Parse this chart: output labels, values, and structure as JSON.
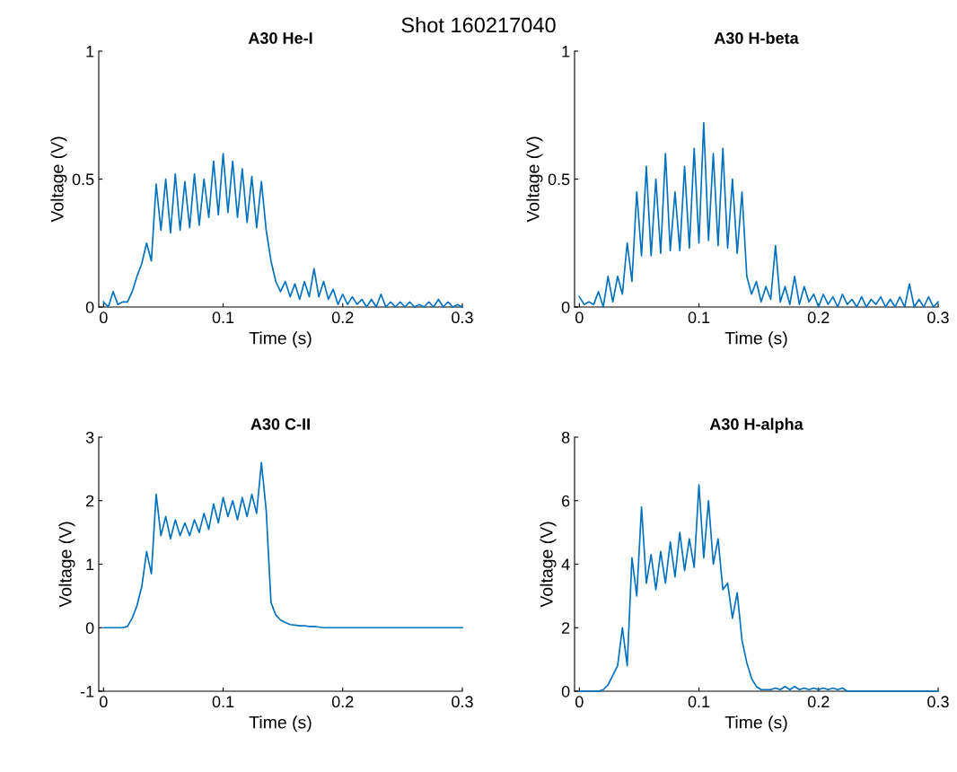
{
  "chart_data": [
    {
      "type": "line",
      "title": "A30 He-I",
      "annotations": [
        "Shot 160217040"
      ],
      "xlabel": "Time (s)",
      "ylabel": "Voltage (V)",
      "xlim": [
        -0.004,
        0.3
      ],
      "xticks": [
        0,
        0.1,
        0.2,
        0.3
      ],
      "ylim": [
        0,
        1
      ],
      "yticks": [
        0,
        0.5,
        1
      ],
      "grid": false,
      "x": [
        0,
        0.004,
        0.008,
        0.012,
        0.016,
        0.02,
        0.024,
        0.028,
        0.032,
        0.036,
        0.04,
        0.044,
        0.048,
        0.052,
        0.056,
        0.06,
        0.064,
        0.068,
        0.072,
        0.076,
        0.08,
        0.084,
        0.088,
        0.092,
        0.096,
        0.1,
        0.104,
        0.108,
        0.112,
        0.116,
        0.12,
        0.124,
        0.128,
        0.132,
        0.136,
        0.14,
        0.144,
        0.148,
        0.152,
        0.156,
        0.16,
        0.164,
        0.168,
        0.172,
        0.176,
        0.18,
        0.184,
        0.188,
        0.192,
        0.196,
        0.2,
        0.204,
        0.208,
        0.212,
        0.216,
        0.22,
        0.224,
        0.228,
        0.232,
        0.236,
        0.24,
        0.244,
        0.248,
        0.252,
        0.256,
        0.26,
        0.264,
        0.268,
        0.272,
        0.276,
        0.28,
        0.284,
        0.288,
        0.292,
        0.296,
        0.3
      ],
      "series": [
        {
          "color": "#0072bd",
          "values": [
            0.02,
            0.0,
            0.06,
            0.01,
            0.02,
            0.02,
            0.06,
            0.12,
            0.17,
            0.25,
            0.18,
            0.48,
            0.3,
            0.5,
            0.29,
            0.52,
            0.3,
            0.49,
            0.31,
            0.52,
            0.32,
            0.5,
            0.35,
            0.57,
            0.36,
            0.6,
            0.37,
            0.57,
            0.35,
            0.54,
            0.33,
            0.51,
            0.31,
            0.49,
            0.3,
            0.18,
            0.1,
            0.06,
            0.1,
            0.04,
            0.09,
            0.03,
            0.1,
            0.04,
            0.15,
            0.04,
            0.1,
            0.03,
            0.07,
            0.01,
            0.05,
            0.01,
            0.04,
            0.01,
            0.03,
            0.0,
            0.03,
            0.0,
            0.05,
            0.0,
            0.02,
            0.0,
            0.02,
            0.0,
            0.02,
            0.0,
            0.01,
            0.0,
            0.02,
            0.0,
            0.03,
            0.0,
            0.02,
            0.0,
            0.01,
            0.0
          ]
        }
      ]
    },
    {
      "type": "line",
      "title": "A30 H-beta",
      "xlabel": "Time (s)",
      "ylabel": "Voltage (V)",
      "xlim": [
        -0.004,
        0.3
      ],
      "xticks": [
        0,
        0.1,
        0.2,
        0.3
      ],
      "ylim": [
        0,
        1
      ],
      "yticks": [
        0,
        0.5,
        1
      ],
      "grid": false,
      "x": [
        0,
        0.004,
        0.008,
        0.012,
        0.016,
        0.02,
        0.024,
        0.028,
        0.032,
        0.036,
        0.04,
        0.044,
        0.048,
        0.052,
        0.056,
        0.06,
        0.064,
        0.068,
        0.072,
        0.076,
        0.08,
        0.084,
        0.088,
        0.092,
        0.096,
        0.1,
        0.104,
        0.108,
        0.112,
        0.116,
        0.12,
        0.124,
        0.128,
        0.132,
        0.136,
        0.14,
        0.144,
        0.148,
        0.152,
        0.156,
        0.16,
        0.164,
        0.168,
        0.172,
        0.176,
        0.18,
        0.184,
        0.188,
        0.192,
        0.196,
        0.2,
        0.204,
        0.208,
        0.212,
        0.216,
        0.22,
        0.224,
        0.228,
        0.232,
        0.236,
        0.24,
        0.244,
        0.248,
        0.252,
        0.256,
        0.26,
        0.264,
        0.268,
        0.272,
        0.276,
        0.28,
        0.284,
        0.288,
        0.292,
        0.296,
        0.3
      ],
      "series": [
        {
          "color": "#0072bd",
          "values": [
            0.04,
            0.01,
            0.02,
            0.01,
            0.06,
            0.0,
            0.12,
            0.02,
            0.12,
            0.05,
            0.25,
            0.1,
            0.45,
            0.2,
            0.55,
            0.2,
            0.5,
            0.21,
            0.6,
            0.22,
            0.45,
            0.22,
            0.55,
            0.23,
            0.62,
            0.25,
            0.72,
            0.26,
            0.6,
            0.24,
            0.62,
            0.23,
            0.5,
            0.21,
            0.45,
            0.12,
            0.05,
            0.1,
            0.02,
            0.08,
            0.03,
            0.24,
            0.02,
            0.08,
            0.01,
            0.12,
            0.01,
            0.08,
            0.02,
            0.05,
            0.0,
            0.05,
            0.01,
            0.04,
            0.0,
            0.05,
            0.01,
            0.03,
            0.0,
            0.04,
            0.0,
            0.03,
            0.01,
            0.04,
            0.0,
            0.03,
            0.0,
            0.04,
            0.0,
            0.09,
            0.0,
            0.03,
            0.0,
            0.04,
            0.0,
            0.02
          ]
        }
      ]
    },
    {
      "type": "line",
      "title": "A30 C-II",
      "xlabel": "Time (s)",
      "ylabel": "Voltage (V)",
      "xlim": [
        -0.004,
        0.3
      ],
      "xticks": [
        0,
        0.1,
        0.2,
        0.3
      ],
      "ylim": [
        -1,
        3
      ],
      "yticks": [
        {
          "value": -1,
          "label": "-1"
        },
        0,
        1,
        2,
        3
      ],
      "grid": false,
      "x": [
        0,
        0.004,
        0.008,
        0.012,
        0.016,
        0.02,
        0.024,
        0.028,
        0.032,
        0.036,
        0.04,
        0.044,
        0.048,
        0.052,
        0.056,
        0.06,
        0.064,
        0.068,
        0.072,
        0.076,
        0.08,
        0.084,
        0.088,
        0.092,
        0.096,
        0.1,
        0.104,
        0.108,
        0.112,
        0.116,
        0.12,
        0.124,
        0.128,
        0.132,
        0.136,
        0.14,
        0.144,
        0.148,
        0.152,
        0.156,
        0.16,
        0.164,
        0.168,
        0.172,
        0.176,
        0.18,
        0.184,
        0.188,
        0.192,
        0.196,
        0.2,
        0.204,
        0.208,
        0.212,
        0.216,
        0.22,
        0.224,
        0.228,
        0.232,
        0.236,
        0.24,
        0.244,
        0.248,
        0.252,
        0.256,
        0.26,
        0.264,
        0.268,
        0.272,
        0.276,
        0.28,
        0.284,
        0.288,
        0.292,
        0.296,
        0.3
      ],
      "series": [
        {
          "color": "#0072bd",
          "values": [
            0.0,
            0.0,
            0.0,
            0.0,
            0.0,
            0.02,
            0.15,
            0.35,
            0.65,
            1.2,
            0.85,
            2.1,
            1.45,
            1.75,
            1.4,
            1.7,
            1.45,
            1.65,
            1.45,
            1.7,
            1.5,
            1.8,
            1.55,
            1.95,
            1.65,
            2.05,
            1.75,
            2.0,
            1.7,
            2.05,
            1.75,
            2.1,
            1.8,
            2.6,
            1.85,
            0.4,
            0.2,
            0.12,
            0.08,
            0.05,
            0.04,
            0.03,
            0.03,
            0.02,
            0.02,
            0.01,
            0.0,
            0.0,
            0.0,
            0.0,
            0.0,
            0.0,
            0.0,
            0.0,
            0.0,
            0.0,
            0.0,
            0.0,
            0.0,
            0.0,
            0.0,
            0.0,
            0.0,
            0.0,
            0.0,
            0.0,
            0.0,
            0.0,
            0.0,
            0.0,
            0.0,
            0.0,
            0.0,
            0.0,
            0.0,
            0.0
          ]
        }
      ]
    },
    {
      "type": "line",
      "title": "A30 H-alpha",
      "xlabel": "Time (s)",
      "ylabel": "Voltage (V)",
      "xlim": [
        -0.004,
        0.3
      ],
      "xticks": [
        0,
        0.1,
        0.2,
        0.3
      ],
      "ylim": [
        0,
        8
      ],
      "yticks": [
        0,
        2,
        4,
        6,
        8
      ],
      "grid": false,
      "x": [
        0,
        0.004,
        0.008,
        0.012,
        0.016,
        0.02,
        0.024,
        0.028,
        0.032,
        0.036,
        0.04,
        0.044,
        0.048,
        0.052,
        0.056,
        0.06,
        0.064,
        0.068,
        0.072,
        0.076,
        0.08,
        0.084,
        0.088,
        0.092,
        0.096,
        0.1,
        0.104,
        0.108,
        0.112,
        0.116,
        0.12,
        0.124,
        0.128,
        0.132,
        0.136,
        0.14,
        0.144,
        0.148,
        0.152,
        0.156,
        0.16,
        0.164,
        0.168,
        0.172,
        0.176,
        0.18,
        0.184,
        0.188,
        0.192,
        0.196,
        0.2,
        0.204,
        0.208,
        0.212,
        0.216,
        0.22,
        0.224,
        0.228,
        0.232,
        0.236,
        0.24,
        0.244,
        0.248,
        0.252,
        0.256,
        0.26,
        0.264,
        0.268,
        0.272,
        0.276,
        0.28,
        0.284,
        0.288,
        0.292,
        0.296,
        0.3
      ],
      "series": [
        {
          "color": "#0072bd",
          "values": [
            0.0,
            0.0,
            0.0,
            0.0,
            0.0,
            0.05,
            0.2,
            0.5,
            0.8,
            2.0,
            0.8,
            4.2,
            3.0,
            5.8,
            3.4,
            4.3,
            3.2,
            4.4,
            3.4,
            4.7,
            3.6,
            5.0,
            3.8,
            4.8,
            3.9,
            6.5,
            4.2,
            6.0,
            4.0,
            4.8,
            3.2,
            3.4,
            2.3,
            3.1,
            1.6,
            0.9,
            0.4,
            0.15,
            0.05,
            0.05,
            0.05,
            0.1,
            0.05,
            0.15,
            0.05,
            0.15,
            0.05,
            0.1,
            0.05,
            0.1,
            0.05,
            0.1,
            0.05,
            0.1,
            0.05,
            0.1,
            0.0,
            0.0,
            0.0,
            0.0,
            0.0,
            0.0,
            0.0,
            0.0,
            0.0,
            0.0,
            0.0,
            0.0,
            0.0,
            0.0,
            0.0,
            0.0,
            0.0,
            0.0,
            0.0,
            0.0
          ]
        }
      ]
    }
  ]
}
